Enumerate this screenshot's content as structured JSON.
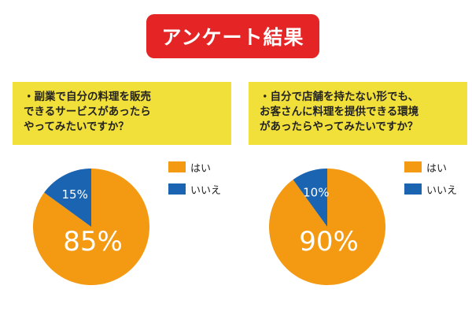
{
  "title": "アンケート結果",
  "colors": {
    "title_bg": "#e52425",
    "question_bg": "#f2e03a",
    "yes": "#f39a12",
    "no": "#1a64b2"
  },
  "legend": {
    "yes": "はい",
    "no": "いいえ"
  },
  "questions": [
    {
      "lines": [
        "・副業で自分の料理を販売",
        "できるサービスがあったら",
        "やってみたいですか？"
      ]
    },
    {
      "lines": [
        "・自分で店舗を持たない形でも、",
        "お客さんに料理を提供できる環境",
        "があったらやってみたいですか？"
      ]
    }
  ],
  "chart_data": [
    {
      "type": "pie",
      "categories": [
        "はい",
        "いいえ"
      ],
      "values": [
        85,
        15
      ],
      "labels": [
        "85%",
        "15%"
      ],
      "colors": [
        "#f39a12",
        "#1a64b2"
      ]
    },
    {
      "type": "pie",
      "categories": [
        "はい",
        "いいえ"
      ],
      "values": [
        90,
        10
      ],
      "labels": [
        "90%",
        "10%"
      ],
      "colors": [
        "#f39a12",
        "#1a64b2"
      ]
    }
  ]
}
